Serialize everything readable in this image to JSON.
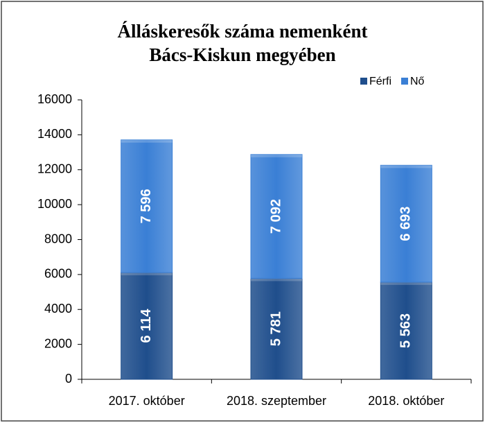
{
  "chart_data": {
    "type": "stacked_bar",
    "title": [
      "Álláskeresők száma nemenként",
      "Bács-Kiskun megyében"
    ],
    "categories": [
      "2017. október",
      "2018. szeptember",
      "2018. október"
    ],
    "series": [
      {
        "name": "Férfi",
        "color": "#1f4e8c",
        "values": [
          6114,
          5781,
          5563
        ],
        "value_labels": [
          "6 114",
          "5 781",
          "5 563"
        ]
      },
      {
        "name": "Nő",
        "color": "#3a7fd5",
        "values": [
          7596,
          7092,
          6693
        ],
        "value_labels": [
          "7 596",
          "7 092",
          "6 693"
        ]
      }
    ],
    "ylim": [
      0,
      16000
    ],
    "yticks": [
      0,
      2000,
      4000,
      6000,
      8000,
      10000,
      12000,
      14000,
      16000
    ],
    "grid": false,
    "legend": "top-right"
  }
}
